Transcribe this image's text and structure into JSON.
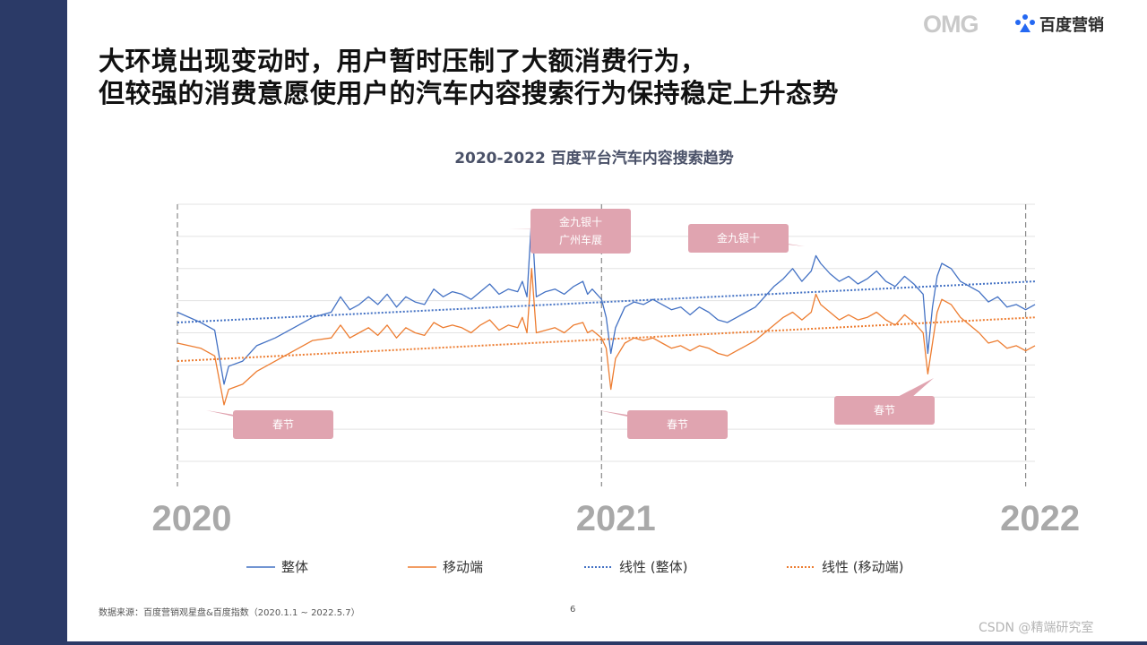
{
  "headline": {
    "line1": "大环境出现变动时，用户暂时压制了大额消费行为，",
    "line2": "但较强的消费意愿使用户的汽车内容搜索行为保持稳定上升态势"
  },
  "logos": {
    "omg": "OMG",
    "baidu": "百度营销"
  },
  "colors": {
    "background": "#ffffff",
    "sidebar": "#2b3a67",
    "overall": "#4472c4",
    "mobile": "#ed7d31",
    "callout": "#e0a4b0",
    "year_label": "#a9a9a9"
  },
  "icons": {
    "baidu_logo": "baidu-marketing-logo-icon"
  },
  "chart_data": {
    "type": "line",
    "title": "2020-2022 百度平台汽车内容搜索趋势",
    "x_range": [
      "2020-01-01",
      "2022-05-07"
    ],
    "y_range_index": [
      0,
      100
    ],
    "gridlines": true,
    "year_markers": [
      "2020",
      "2021",
      "2022"
    ],
    "series": [
      {
        "name": "整体",
        "style": "solid",
        "color": "#4472c4",
        "points": [
          [
            0,
            58
          ],
          [
            5,
            54
          ],
          [
            8,
            51
          ],
          [
            10,
            30
          ],
          [
            11,
            37
          ],
          [
            14,
            39
          ],
          [
            17,
            45
          ],
          [
            21,
            48
          ],
          [
            25,
            52
          ],
          [
            29,
            56
          ],
          [
            33,
            58
          ],
          [
            35,
            64
          ],
          [
            37,
            59
          ],
          [
            39,
            61
          ],
          [
            41,
            64
          ],
          [
            43,
            61
          ],
          [
            45,
            65
          ],
          [
            47,
            60
          ],
          [
            49,
            64
          ],
          [
            51,
            62
          ],
          [
            53,
            61
          ],
          [
            55,
            67
          ],
          [
            57,
            64
          ],
          [
            59,
            66
          ],
          [
            61,
            65
          ],
          [
            63,
            63
          ],
          [
            65,
            66
          ],
          [
            67,
            69
          ],
          [
            69,
            65
          ],
          [
            71,
            67
          ],
          [
            73,
            66
          ],
          [
            74,
            70
          ],
          [
            75,
            64
          ],
          [
            76,
            95
          ],
          [
            77,
            64
          ],
          [
            79,
            66
          ],
          [
            81,
            67
          ],
          [
            83,
            65
          ],
          [
            85,
            68
          ],
          [
            87,
            70
          ],
          [
            88,
            65
          ],
          [
            89,
            67
          ],
          [
            91,
            63
          ],
          [
            92,
            56
          ],
          [
            93,
            42
          ],
          [
            94,
            52
          ],
          [
            96,
            60
          ],
          [
            98,
            62
          ],
          [
            100,
            61
          ],
          [
            102,
            63
          ],
          [
            104,
            61
          ],
          [
            106,
            59
          ],
          [
            108,
            60
          ],
          [
            110,
            57
          ],
          [
            112,
            60
          ],
          [
            114,
            58
          ],
          [
            116,
            55
          ],
          [
            118,
            54
          ],
          [
            120,
            56
          ],
          [
            122,
            58
          ],
          [
            124,
            60
          ],
          [
            126,
            64
          ],
          [
            128,
            68
          ],
          [
            130,
            71
          ],
          [
            132,
            75
          ],
          [
            134,
            70
          ],
          [
            136,
            74
          ],
          [
            137,
            80
          ],
          [
            138,
            77
          ],
          [
            140,
            73
          ],
          [
            142,
            70
          ],
          [
            144,
            72
          ],
          [
            146,
            69
          ],
          [
            148,
            71
          ],
          [
            150,
            74
          ],
          [
            152,
            70
          ],
          [
            154,
            68
          ],
          [
            156,
            72
          ],
          [
            158,
            69
          ],
          [
            160,
            65
          ],
          [
            161,
            42
          ],
          [
            162,
            60
          ],
          [
            163,
            72
          ],
          [
            164,
            77
          ],
          [
            166,
            75
          ],
          [
            168,
            70
          ],
          [
            170,
            68
          ],
          [
            172,
            66
          ],
          [
            174,
            62
          ],
          [
            176,
            64
          ],
          [
            178,
            60
          ],
          [
            180,
            61
          ],
          [
            182,
            59
          ],
          [
            184,
            61
          ]
        ]
      },
      {
        "name": "移动端",
        "style": "solid",
        "color": "#ed7d31",
        "points": [
          [
            0,
            46
          ],
          [
            5,
            44
          ],
          [
            8,
            41
          ],
          [
            10,
            22
          ],
          [
            11,
            28
          ],
          [
            14,
            30
          ],
          [
            17,
            35
          ],
          [
            21,
            39
          ],
          [
            25,
            43
          ],
          [
            29,
            47
          ],
          [
            33,
            48
          ],
          [
            35,
            53
          ],
          [
            37,
            48
          ],
          [
            39,
            50
          ],
          [
            41,
            52
          ],
          [
            43,
            49
          ],
          [
            45,
            53
          ],
          [
            47,
            48
          ],
          [
            49,
            52
          ],
          [
            51,
            50
          ],
          [
            53,
            49
          ],
          [
            55,
            54
          ],
          [
            57,
            52
          ],
          [
            59,
            53
          ],
          [
            61,
            52
          ],
          [
            63,
            50
          ],
          [
            65,
            53
          ],
          [
            67,
            55
          ],
          [
            69,
            51
          ],
          [
            71,
            53
          ],
          [
            73,
            52
          ],
          [
            74,
            56
          ],
          [
            75,
            50
          ],
          [
            76,
            75
          ],
          [
            77,
            50
          ],
          [
            79,
            51
          ],
          [
            81,
            52
          ],
          [
            83,
            50
          ],
          [
            85,
            53
          ],
          [
            87,
            54
          ],
          [
            88,
            50
          ],
          [
            89,
            51
          ],
          [
            91,
            48
          ],
          [
            92,
            44
          ],
          [
            93,
            28
          ],
          [
            94,
            40
          ],
          [
            96,
            46
          ],
          [
            98,
            48
          ],
          [
            100,
            47
          ],
          [
            102,
            48
          ],
          [
            104,
            46
          ],
          [
            106,
            44
          ],
          [
            108,
            45
          ],
          [
            110,
            43
          ],
          [
            112,
            45
          ],
          [
            114,
            44
          ],
          [
            116,
            42
          ],
          [
            118,
            41
          ],
          [
            120,
            43
          ],
          [
            122,
            45
          ],
          [
            124,
            47
          ],
          [
            126,
            50
          ],
          [
            128,
            53
          ],
          [
            130,
            56
          ],
          [
            132,
            58
          ],
          [
            134,
            55
          ],
          [
            136,
            58
          ],
          [
            137,
            65
          ],
          [
            138,
            61
          ],
          [
            140,
            58
          ],
          [
            142,
            55
          ],
          [
            144,
            57
          ],
          [
            146,
            55
          ],
          [
            148,
            56
          ],
          [
            150,
            58
          ],
          [
            152,
            55
          ],
          [
            154,
            53
          ],
          [
            156,
            57
          ],
          [
            158,
            54
          ],
          [
            160,
            50
          ],
          [
            161,
            34
          ],
          [
            162,
            46
          ],
          [
            163,
            58
          ],
          [
            164,
            63
          ],
          [
            166,
            61
          ],
          [
            168,
            56
          ],
          [
            170,
            53
          ],
          [
            172,
            50
          ],
          [
            174,
            46
          ],
          [
            176,
            47
          ],
          [
            178,
            44
          ],
          [
            180,
            45
          ],
          [
            182,
            43
          ],
          [
            184,
            45
          ]
        ]
      },
      {
        "name": "线性 (整体)",
        "style": "dotted",
        "color": "#4472c4",
        "points": [
          [
            0,
            54
          ],
          [
            184,
            70
          ]
        ]
      },
      {
        "name": "线性 (移动端)",
        "style": "dotted",
        "color": "#ed7d31",
        "points": [
          [
            0,
            39
          ],
          [
            184,
            56
          ]
        ]
      }
    ],
    "annotations": [
      {
        "text": "春节",
        "time": 10
      },
      {
        "text": "金九银十\n广州车展",
        "time": 76
      },
      {
        "text": "春节",
        "time": 93
      },
      {
        "text": "金九银十",
        "time": 137
      },
      {
        "text": "春节",
        "time": 161
      }
    ],
    "legend_position": "bottom"
  },
  "footer": {
    "source": "数据来源：百度营销观星盘&百度指数（2020.1.1 ~ 2022.5.7）",
    "page_number": "6",
    "watermark": "CSDN @精端研究室"
  }
}
